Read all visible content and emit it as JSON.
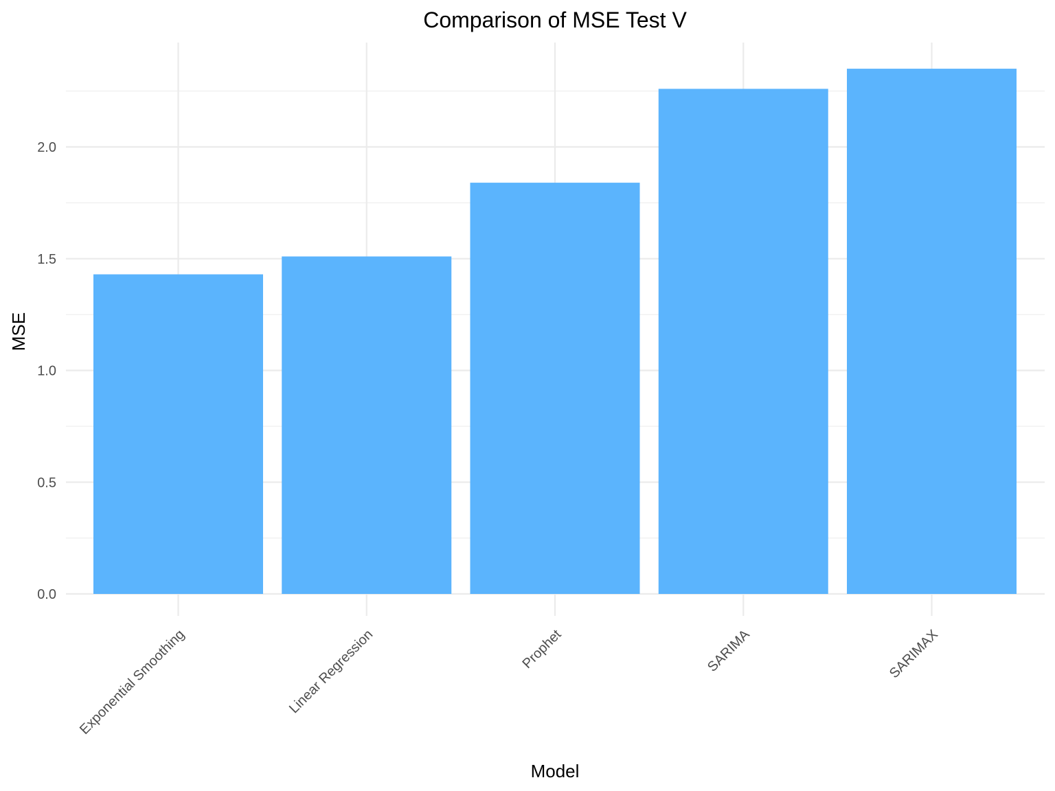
{
  "chart_data": {
    "type": "bar",
    "title": "Comparison of MSE Test V",
    "xlabel": "Model",
    "ylabel": "MSE",
    "categories": [
      "Exponential Smoothing",
      "Linear Regression",
      "Prophet",
      "SARIMA",
      "SARIMAX"
    ],
    "values": [
      1.43,
      1.51,
      1.84,
      2.26,
      2.35
    ],
    "ylim": [
      0,
      2.45
    ],
    "yticks": [
      0.0,
      0.5,
      1.0,
      1.5,
      2.0
    ],
    "ytick_labels": [
      "0.0",
      "0.5",
      "1.0",
      "1.5",
      "2.0"
    ],
    "grid": true,
    "bar_color": "#5BB4FD",
    "grid_color": "#EBEBEB",
    "tick_label_color": "#4D4D4D"
  }
}
